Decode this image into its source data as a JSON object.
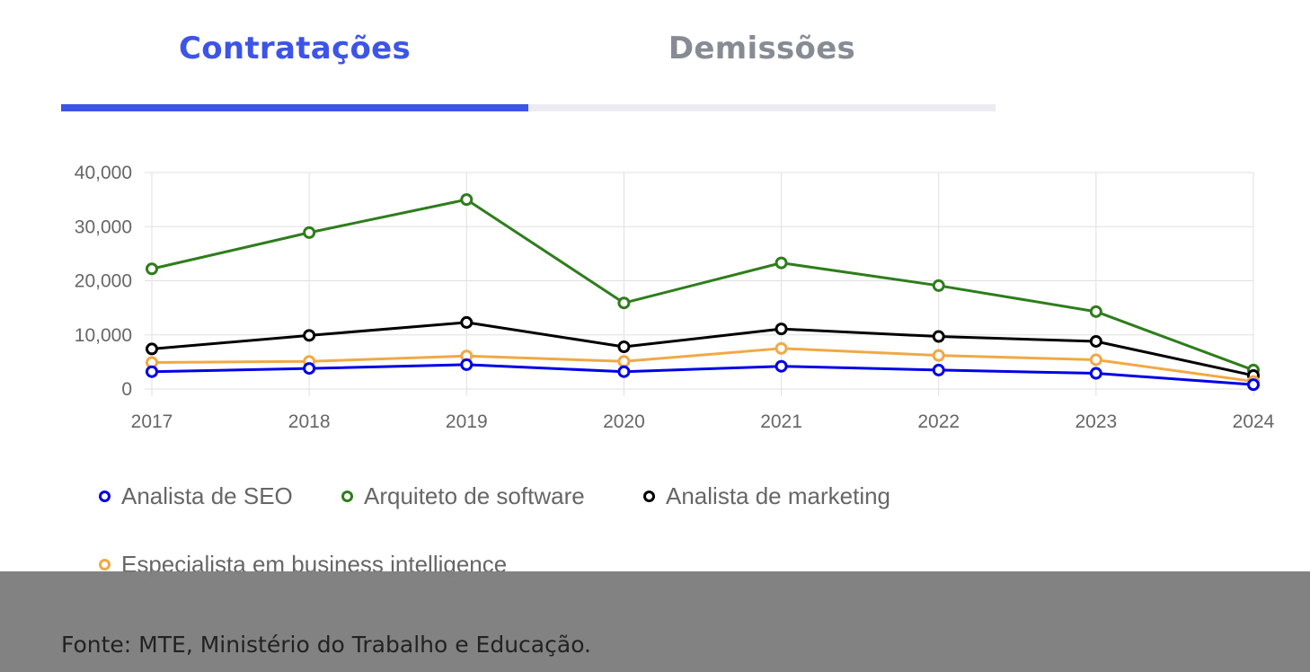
{
  "tabs": [
    {
      "label": "Contratações",
      "active": true
    },
    {
      "label": "Demissões",
      "active": false
    }
  ],
  "colors": {
    "accent": "#3d54e8",
    "inactive_text": "#878b94",
    "inactive_bar": "#ebebf1",
    "grid": "#e0e0e0",
    "axis_text": "#666666"
  },
  "chart_data": {
    "type": "line",
    "x": [
      "2017",
      "2018",
      "2019",
      "2020",
      "2021",
      "2022",
      "2023",
      "2024"
    ],
    "ylim": [
      0,
      40000
    ],
    "yticks": [
      "0",
      "10,000",
      "20,000",
      "30,000",
      "40,000"
    ],
    "grid": true,
    "legend_position": "bottom",
    "series": [
      {
        "name": "Analista de SEO",
        "color": "#0000e6",
        "values": [
          3200,
          3800,
          4500,
          3200,
          4200,
          3500,
          2900,
          800
        ]
      },
      {
        "name": "Arquiteto de software",
        "color": "#2e7d1c",
        "values": [
          22200,
          28900,
          35000,
          15900,
          23300,
          19100,
          14300,
          3500
        ]
      },
      {
        "name": "Analista de marketing",
        "color": "#000000",
        "values": [
          7400,
          9900,
          12300,
          7800,
          11100,
          9700,
          8800,
          2500
        ]
      },
      {
        "name": "Especialista em business intelligence",
        "color": "#f0a945",
        "values": [
          4900,
          5100,
          6100,
          5100,
          7500,
          6200,
          5400,
          1400
        ]
      }
    ]
  },
  "source": "Fonte: MTE, Ministério do Trabalho e Educação."
}
